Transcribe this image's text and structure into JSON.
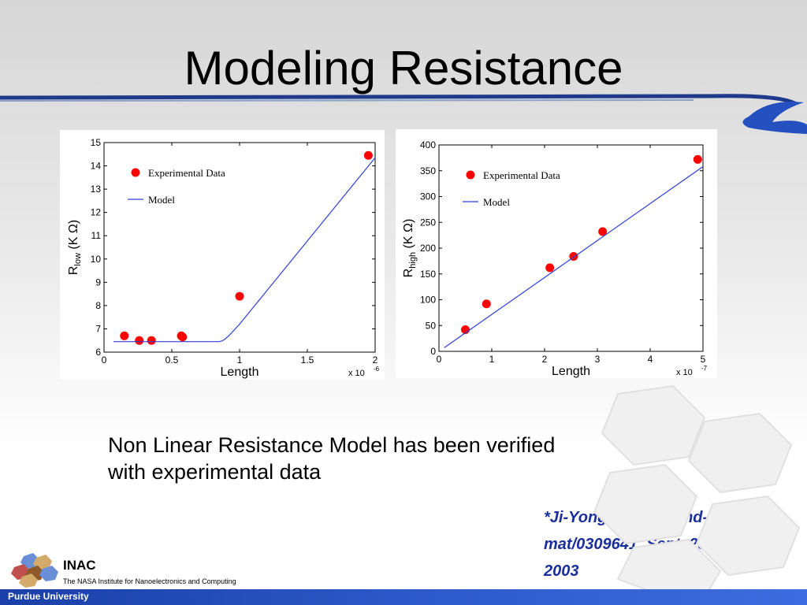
{
  "slide": {
    "title": "Modeling Resistance",
    "caption_line1": "Non Linear Resistance Model has been verified",
    "caption_line2": "with experimental data",
    "reference_line1": "*Ji-Yong, et. al., cond-",
    "reference_line2": "mat/0309641, Sept. 28,",
    "reference_line3": "2003"
  },
  "footer": {
    "org_short": "INAC",
    "org_full": "The NASA Institute for Nanoelectronics and Computing",
    "university": "Purdue University"
  },
  "colors": {
    "data_point": "#ff0000",
    "model_line": "#2e3fd6",
    "footer_bar": "#2b59c9",
    "reference_text": "#1b2f9b"
  },
  "chart_data": [
    {
      "type": "scatter",
      "xlabel": "Length",
      "ylabel_main": "R",
      "ylabel_sub": "low",
      "ylabel_unit": " (K Ω)",
      "x_multiplier": "x 10",
      "x_exponent": "-6",
      "xlim": [
        0,
        2
      ],
      "ylim": [
        6,
        15
      ],
      "xticks": [
        0,
        0.5,
        1,
        1.5,
        2
      ],
      "xtick_labels": [
        "0",
        "0.5",
        "1",
        "1.5",
        "2"
      ],
      "yticks": [
        6,
        7,
        8,
        9,
        10,
        11,
        12,
        13,
        14,
        15
      ],
      "ytick_labels": [
        "6",
        "7",
        "8",
        "9",
        "10",
        "11",
        "12",
        "13",
        "14",
        "15"
      ],
      "legend_position": "top-left",
      "series": [
        {
          "name": "Experimental Data",
          "kind": "points",
          "x": [
            0.15,
            0.26,
            0.35,
            0.57,
            0.58,
            1.0,
            1.95
          ],
          "y": [
            6.7,
            6.5,
            6.5,
            6.7,
            6.65,
            8.4,
            14.45
          ]
        },
        {
          "name": "Model",
          "kind": "line",
          "x": [
            0.07,
            0.85,
            0.87,
            0.89,
            0.92,
            1.0,
            2.0
          ],
          "y": [
            6.45,
            6.45,
            6.48,
            6.55,
            6.7,
            7.2,
            14.35
          ]
        }
      ]
    },
    {
      "type": "scatter",
      "xlabel": "Length",
      "ylabel_main": "R",
      "ylabel_sub": "high",
      "ylabel_unit": " (K Ω)",
      "x_multiplier": "x 10",
      "x_exponent": "-7",
      "xlim": [
        0,
        5
      ],
      "ylim": [
        0,
        400
      ],
      "xticks": [
        0,
        1,
        2,
        3,
        4,
        5
      ],
      "xtick_labels": [
        "0",
        "1",
        "2",
        "3",
        "4",
        "5"
      ],
      "yticks": [
        0,
        50,
        100,
        150,
        200,
        250,
        300,
        350,
        400
      ],
      "ytick_labels": [
        "0",
        "50",
        "100",
        "150",
        "200",
        "250",
        "300",
        "350",
        "400"
      ],
      "legend_position": "top-left",
      "series": [
        {
          "name": "Experimental Data",
          "kind": "points",
          "x": [
            0.5,
            0.9,
            2.1,
            2.55,
            3.1,
            4.9
          ],
          "y": [
            42,
            92,
            162,
            184,
            232,
            372
          ]
        },
        {
          "name": "Model",
          "kind": "line",
          "x": [
            0.1,
            5.0
          ],
          "y": [
            7,
            358
          ]
        }
      ]
    }
  ]
}
